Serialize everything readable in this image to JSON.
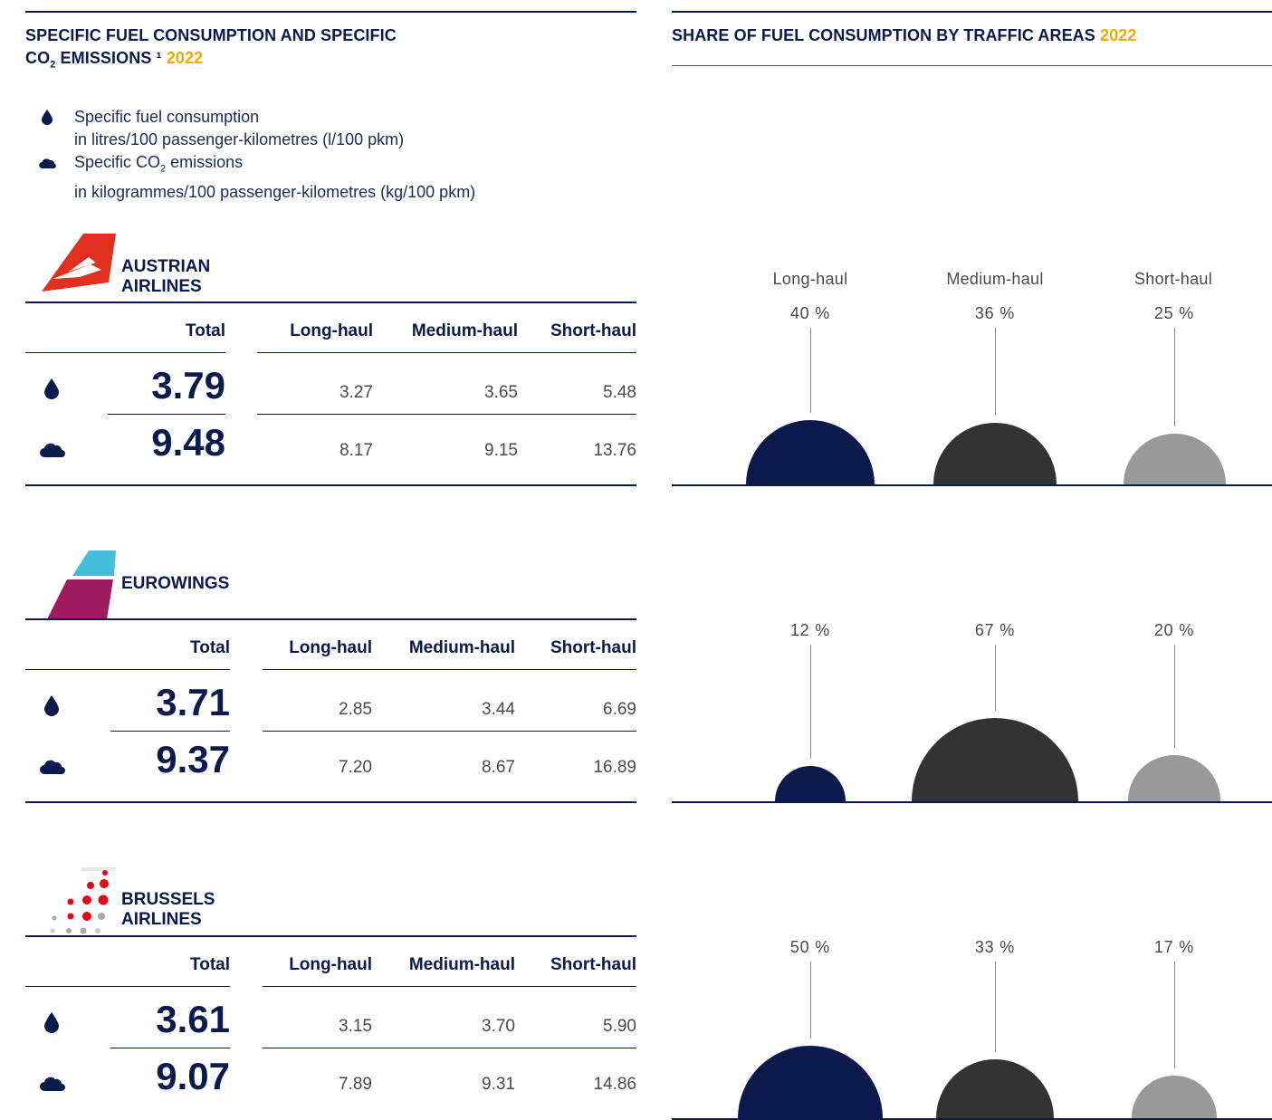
{
  "left": {
    "title_line1": "SPECIFIC FUEL CONSUMPTION AND SPECIFIC",
    "title_line2_pre": "CO",
    "title_line2_sub": "2",
    "title_line2_post": " EMISSIONS ¹ ",
    "year": "2022",
    "legend": {
      "fuel_line1": "Specific fuel consumption",
      "fuel_line2": "in litres/100 passenger-kilometres (l/100 pkm)",
      "co2_line1_pre": "Specific CO",
      "co2_line1_sub": "2",
      "co2_line1_post": " emissions",
      "co2_line2": "in kilogrammes/100 passenger-kilometres (kg/100 pkm)",
      "fuel_icon": "drop-icon",
      "co2_icon": "cloud-icon"
    }
  },
  "right": {
    "title": "SHARE OF FUEL CONSUMPTION BY TRAFFIC AREAS ",
    "year": "2022"
  },
  "columns": {
    "total": "Total",
    "long": "Long-haul",
    "medium": "Medium-haul",
    "short": "Short-haul"
  },
  "chart_data": {
    "type": "bar",
    "title": "SHARE OF FUEL CONSUMPTION BY TRAFFIC AREAS 2022",
    "categories": [
      "Long-haul",
      "Medium-haul",
      "Short-haul"
    ],
    "colors": [
      "#0c1a4b",
      "#333333",
      "#999999"
    ],
    "unit": "%",
    "series": [
      {
        "name": "AUSTRIAN AIRLINES",
        "values": [
          40,
          36,
          25
        ],
        "labels": [
          "40 %",
          "36 %",
          "25 %"
        ]
      },
      {
        "name": "EUROWINGS",
        "values": [
          12,
          67,
          20
        ],
        "labels": [
          "12 %",
          "67 %",
          "20 %"
        ]
      },
      {
        "name": "BRUSSELS AIRLINES",
        "values": [
          50,
          33,
          17
        ],
        "labels": [
          "50 %",
          "33 %",
          "17 %"
        ]
      }
    ]
  },
  "airlines": [
    {
      "name": "AUSTRIAN AIRLINES",
      "fuel": {
        "total": "3.79",
        "long": "3.27",
        "medium": "3.65",
        "short": "5.48"
      },
      "co2": {
        "total": "9.48",
        "long": "8.17",
        "medium": "9.15",
        "short": "13.76"
      }
    },
    {
      "name": "EUROWINGS",
      "fuel": {
        "total": "3.71",
        "long": "2.85",
        "medium": "3.44",
        "short": "6.69"
      },
      "co2": {
        "total": "9.37",
        "long": "7.20",
        "medium": "8.67",
        "short": "16.89"
      }
    },
    {
      "name": "BRUSSELS AIRLINES",
      "fuel": {
        "total": "3.61",
        "long": "3.15",
        "medium": "3.70",
        "short": "5.90"
      },
      "co2": {
        "total": "9.07",
        "long": "7.89",
        "medium": "9.31",
        "short": "14.86"
      }
    }
  ]
}
